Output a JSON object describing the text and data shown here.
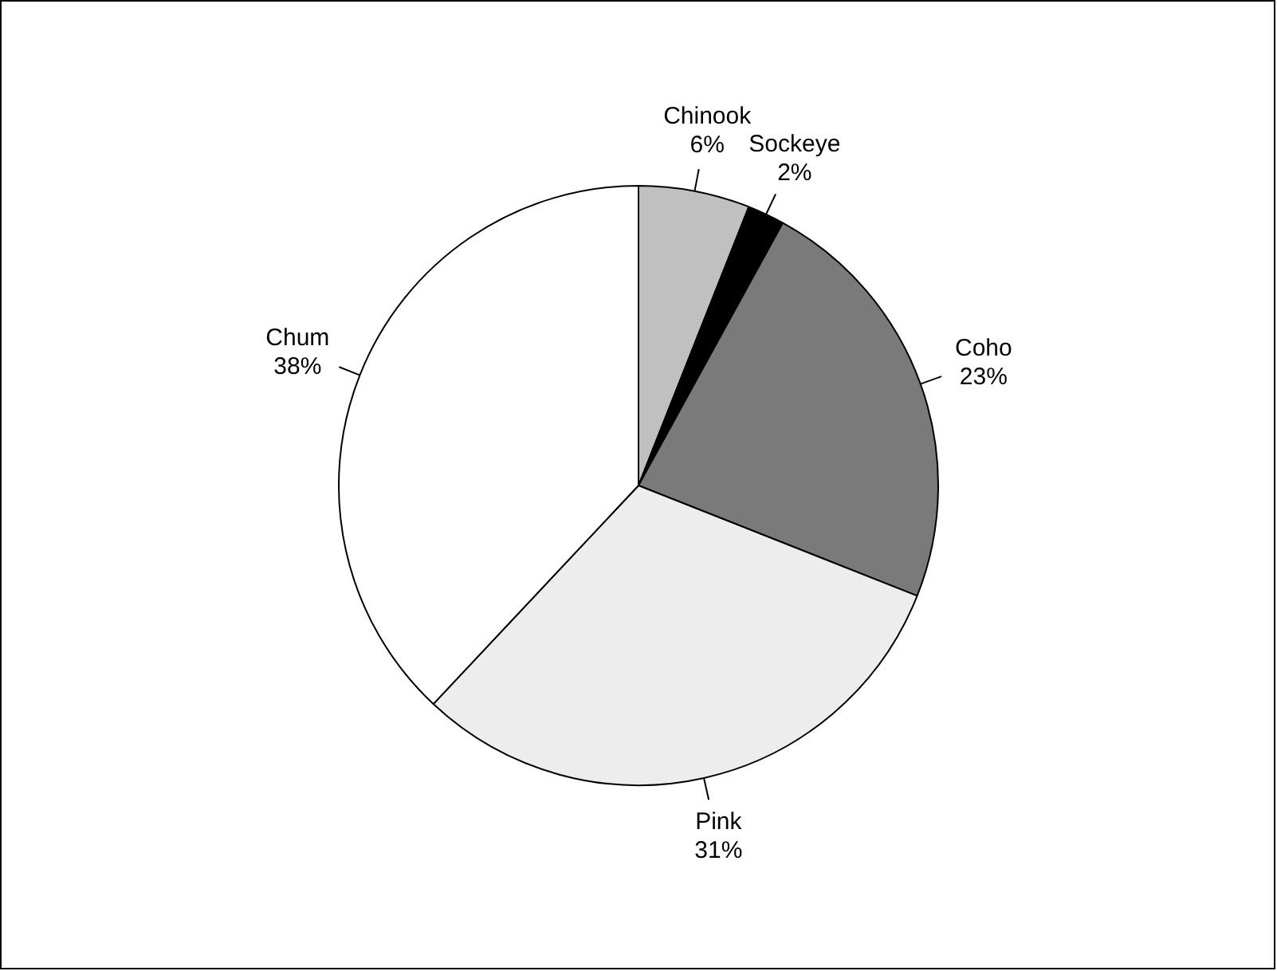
{
  "chart_data": {
    "type": "pie",
    "categories": [
      "Chinook",
      "Sockeye",
      "Coho",
      "Pink",
      "Chum"
    ],
    "values": [
      6,
      2,
      23,
      31,
      38
    ],
    "value_labels": [
      "6%",
      "2%",
      "23%",
      "31%",
      "38%"
    ],
    "colors": [
      "#c0c0c0",
      "#000000",
      "#7a7a7a",
      "#ededed",
      "#ffffff"
    ],
    "legend": false
  }
}
